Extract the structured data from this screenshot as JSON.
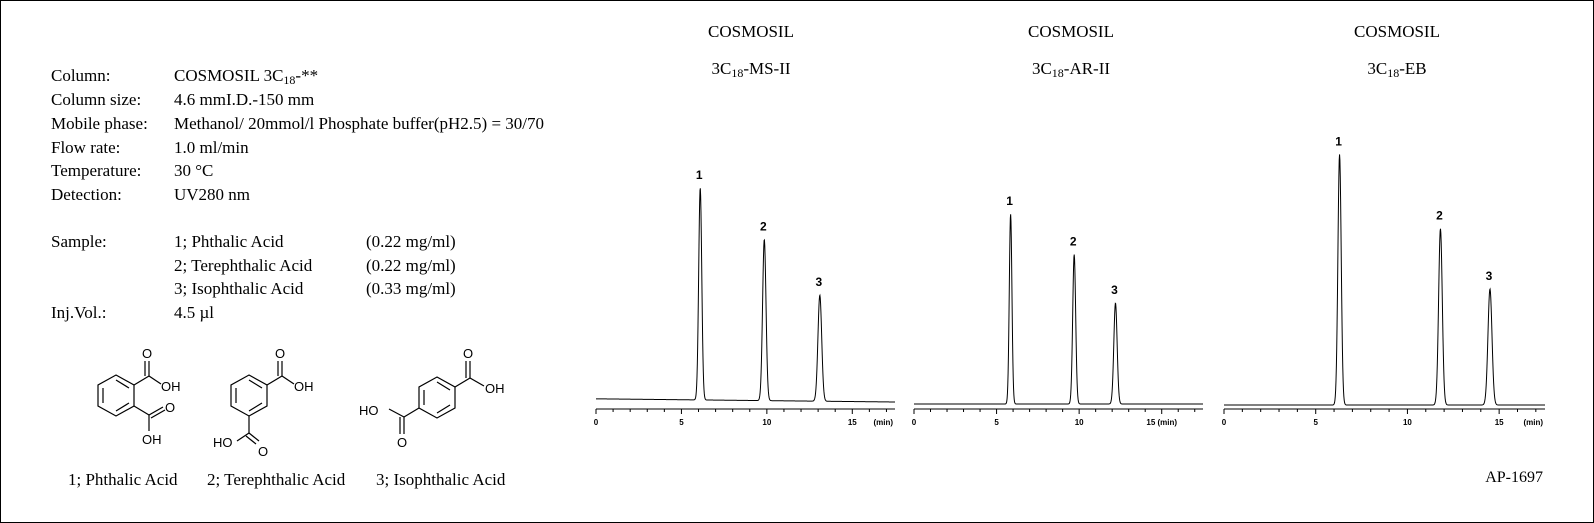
{
  "conditions": {
    "column": {
      "label": "Column:",
      "value_prefix": "COSMOSIL 3C",
      "value_sub": "18",
      "value_suffix": "-**"
    },
    "column_size": {
      "label": "Column size:",
      "value": "4.6 mmI.D.-150 mm"
    },
    "mobile_phase": {
      "label": "Mobile phase:",
      "value": "Methanol/ 20mmol/l Phosphate buffer(pH2.5) = 30/70"
    },
    "flow_rate": {
      "label": "Flow rate:",
      "value": "1.0 ml/min"
    },
    "temperature": {
      "label": "Temperature:",
      "value": "30 °C"
    },
    "detection": {
      "label": "Detection:",
      "value": "UV280 nm"
    },
    "sample": {
      "label": "Sample:",
      "items": [
        {
          "name": "1; Phthalic Acid",
          "conc": "(0.22 mg/ml)"
        },
        {
          "name": "2; Terephthalic Acid",
          "conc": "(0.22 mg/ml)"
        },
        {
          "name": "3; Isophthalic Acid",
          "conc": "(0.33 mg/ml)"
        }
      ]
    },
    "inj_vol": {
      "label": "Inj.Vol.:",
      "value": "4.5 µl"
    }
  },
  "structures": {
    "labels": [
      "1; Phthalic Acid",
      "2; Terephthalic Acid",
      "3; Isophthalic Acid"
    ],
    "oh": "OH",
    "ho": "HO",
    "o": "O"
  },
  "reference": "AP-1697",
  "chart_data": [
    {
      "type": "line",
      "title_line1": "COSMOSIL",
      "title_prefix": "3C",
      "title_sub": "18",
      "title_suffix": "-MS-II",
      "xlabel": "(min)",
      "xlim": [
        0,
        17.5
      ],
      "xticks": [
        0,
        5,
        10,
        15
      ],
      "baseline_drift": [
        0.015,
        0.0
      ],
      "peaks": [
        {
          "label": "1",
          "rt": 6.1,
          "height": 1.0,
          "width": 0.09
        },
        {
          "label": "2",
          "rt": 9.85,
          "height": 0.76,
          "width": 0.1
        },
        {
          "label": "3",
          "rt": 13.1,
          "height": 0.5,
          "width": 0.11
        }
      ]
    },
    {
      "type": "line",
      "title_line1": "COSMOSIL",
      "title_prefix": "3C",
      "title_sub": "18",
      "title_suffix": "-AR-II",
      "xlabel": "(min)",
      "xlim": [
        0,
        17.5
      ],
      "xticks": [
        0,
        5,
        10,
        15
      ],
      "tick_labels": [
        "0",
        "5",
        "10",
        "15 (min)"
      ],
      "baseline_drift": [
        0.0,
        0.0
      ],
      "peaks": [
        {
          "label": "1",
          "rt": 5.85,
          "height": 0.94,
          "width": 0.08
        },
        {
          "label": "2",
          "rt": 9.7,
          "height": 0.74,
          "width": 0.09
        },
        {
          "label": "3",
          "rt": 12.2,
          "height": 0.5,
          "width": 0.1
        }
      ]
    },
    {
      "type": "line",
      "title_line1": "COSMOSIL",
      "title_prefix": "3C",
      "title_sub": "18",
      "title_suffix": "-EB",
      "xlabel": "(min)",
      "xlim": [
        0,
        17.5
      ],
      "xticks": [
        0,
        5,
        10,
        15
      ],
      "baseline_drift": [
        0.0,
        0.0
      ],
      "peaks": [
        {
          "label": "1",
          "rt": 6.3,
          "height": 1.08,
          "width": 0.09
        },
        {
          "label": "2",
          "rt": 11.8,
          "height": 0.76,
          "width": 0.1
        },
        {
          "label": "3",
          "rt": 14.5,
          "height": 0.5,
          "width": 0.11
        }
      ]
    }
  ]
}
